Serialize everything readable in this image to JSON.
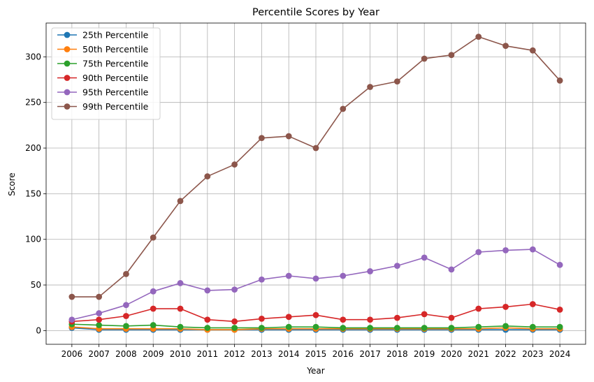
{
  "chart_data": {
    "type": "line",
    "title": "Percentile Scores by Year",
    "xlabel": "Year",
    "ylabel": "Score",
    "ylim": [
      -15,
      337
    ],
    "yticks": [
      0,
      50,
      100,
      150,
      200,
      250,
      300
    ],
    "grid": true,
    "legend_position": "top-left",
    "categories": [
      "2006",
      "2007",
      "2008",
      "2009",
      "2010",
      "2011",
      "2012",
      "2013",
      "2014",
      "2015",
      "2016",
      "2017",
      "2018",
      "2019",
      "2020",
      "2021",
      "2022",
      "2023",
      "2024"
    ],
    "series": [
      {
        "name": "25th Percentile",
        "color": "#1f77b4",
        "values": [
          3,
          1,
          1,
          1,
          1,
          1,
          1,
          1,
          1,
          1,
          1,
          1,
          1,
          1,
          1,
          1,
          1,
          1,
          1
        ]
      },
      {
        "name": "50th Percentile",
        "color": "#ff7f0e",
        "values": [
          4,
          2,
          2,
          2,
          2,
          1,
          1,
          2,
          2,
          2,
          2,
          2,
          2,
          2,
          2,
          2,
          3,
          2,
          2
        ]
      },
      {
        "name": "75th Percentile",
        "color": "#2ca02c",
        "values": [
          7,
          6,
          5,
          6,
          4,
          3,
          3,
          3,
          4,
          4,
          3,
          3,
          3,
          3,
          3,
          4,
          5,
          4,
          4
        ]
      },
      {
        "name": "90th Percentile",
        "color": "#d62728",
        "values": [
          10,
          12,
          16,
          24,
          24,
          12,
          10,
          13,
          15,
          17,
          12,
          12,
          14,
          18,
          14,
          24,
          26,
          29,
          23
        ]
      },
      {
        "name": "95th Percentile",
        "color": "#9467bd",
        "values": [
          12,
          19,
          28,
          43,
          52,
          44,
          45,
          56,
          60,
          57,
          60,
          65,
          71,
          80,
          67,
          86,
          88,
          89,
          72
        ]
      },
      {
        "name": "99th Percentile",
        "color": "#8c564b",
        "values": [
          37,
          37,
          62,
          102,
          142,
          169,
          182,
          211,
          213,
          200,
          243,
          267,
          273,
          298,
          302,
          322,
          312,
          307,
          274
        ]
      }
    ]
  }
}
